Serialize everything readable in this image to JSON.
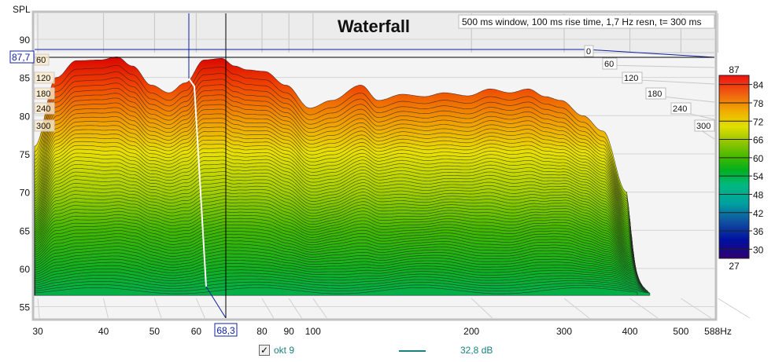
{
  "chart_data": {
    "type": "waterfall",
    "title": "Waterfall",
    "subtitle": "500 ms window, 100 ms rise time,  1,7 Hz resn, t= 300 ms",
    "ylabel": "SPL",
    "xlabel_unit": "Hz",
    "ylim": [
      53,
      94
    ],
    "xlim": [
      30,
      588
    ],
    "x_scale": "log",
    "y_ticks": [
      90,
      85,
      80,
      75,
      70,
      65,
      60,
      55
    ],
    "x_ticks": [
      "30",
      "40",
      "50",
      "60",
      "80",
      "90",
      "100",
      "200",
      "300",
      "400",
      "500",
      "588Hz"
    ],
    "x_tick_values": [
      30,
      40,
      50,
      60,
      80,
      90,
      100,
      200,
      300,
      400,
      500,
      588
    ],
    "time_ticks_ms": [
      "0",
      "60",
      "120",
      "180",
      "240",
      "300"
    ],
    "cursor": {
      "spl": "87,7",
      "freq": "68,3"
    },
    "t0_profile": {
      "freq_hz": [
        30,
        33,
        36,
        40,
        43,
        46,
        50,
        54,
        58,
        63,
        68,
        72,
        76,
        82,
        90,
        100,
        110,
        125,
        135,
        150,
        165,
        180,
        200,
        220,
        240,
        260,
        280,
        300,
        330,
        360,
        400,
        420
      ],
      "spl_db": [
        76,
        85,
        87.2,
        87.3,
        87.7,
        86.5,
        84,
        83,
        84.3,
        87.3,
        87.5,
        86.5,
        86,
        85.8,
        84,
        81,
        82,
        84,
        82,
        82.8,
        82.5,
        83,
        82.6,
        83.5,
        83,
        83.5,
        82.5,
        82,
        80,
        78,
        70,
        60
      ]
    },
    "t300_floor_db": 57.5,
    "colorbar": {
      "max": "87",
      "min": "27",
      "ticks": [
        "84",
        "78",
        "72",
        "66",
        "60",
        "54",
        "48",
        "42",
        "36",
        "30"
      ]
    }
  },
  "legend": {
    "name": "okt 9",
    "value": "32,8 dB",
    "checked": true,
    "color": "#1a8080"
  },
  "colors": {
    "cursor": "#1020a0",
    "grid": "#c8c8c8",
    "wall": "#ececec"
  }
}
